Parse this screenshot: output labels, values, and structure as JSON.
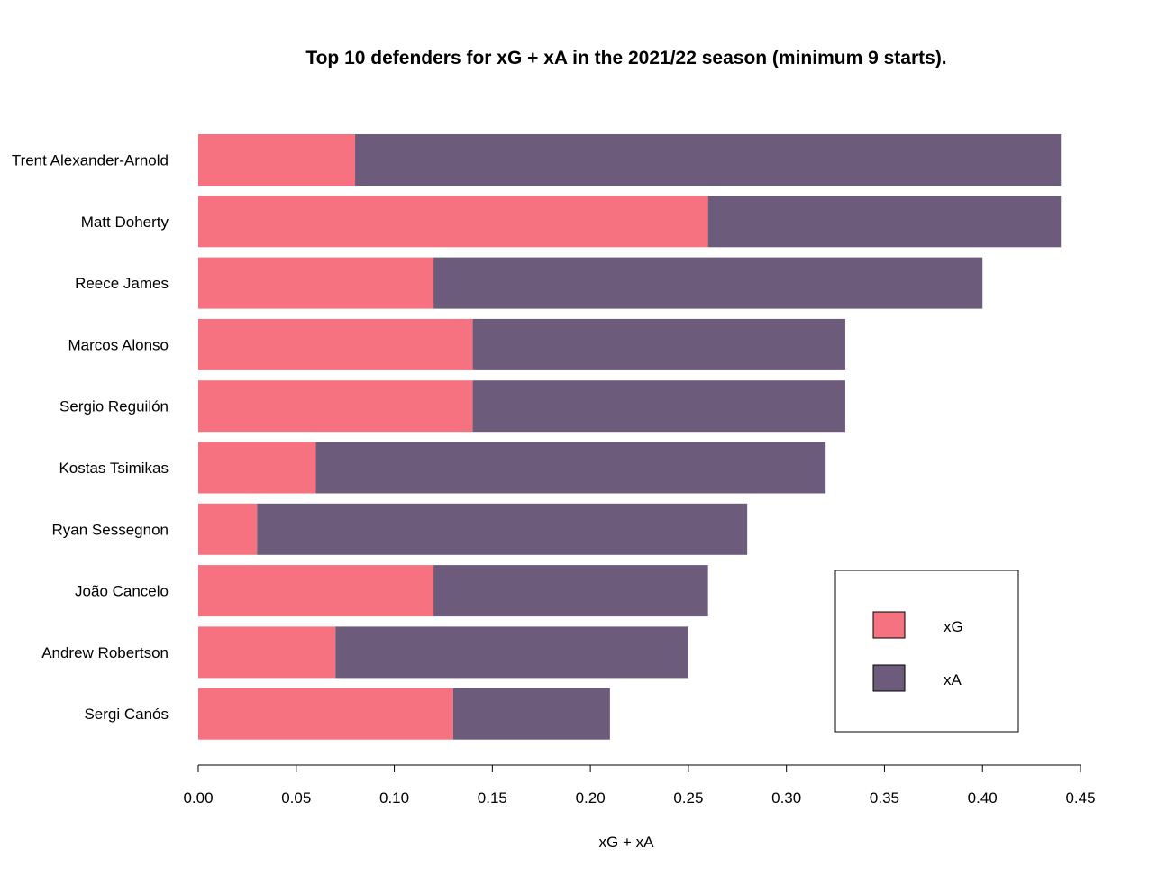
{
  "chart_data": {
    "type": "bar",
    "orientation": "horizontal",
    "stacked": true,
    "title": "Top 10 defenders for xG + xA in the 2021/22 season (minimum 9 starts).",
    "xlabel": "xG + xA",
    "ylabel": "",
    "xlim": [
      0,
      0.45
    ],
    "x_ticks": [
      "0.00",
      "0.05",
      "0.10",
      "0.15",
      "0.20",
      "0.25",
      "0.30",
      "0.35",
      "0.40",
      "0.45"
    ],
    "x_tick_values": [
      0,
      0.05,
      0.1,
      0.15,
      0.2,
      0.25,
      0.3,
      0.35,
      0.4,
      0.45
    ],
    "grid": false,
    "legend_position": "bottom-right",
    "categories": [
      "Trent Alexander-Arnold",
      "Matt Doherty",
      "Reece James",
      "Marcos Alonso",
      "Sergio Reguilón",
      "Kostas Tsimikas",
      "Ryan Sessegnon",
      "João Cancelo",
      "Andrew Robertson",
      "Sergi Canós"
    ],
    "series": [
      {
        "name": "xG",
        "color": "#F67280",
        "values": [
          0.08,
          0.26,
          0.12,
          0.14,
          0.14,
          0.06,
          0.03,
          0.12,
          0.07,
          0.13
        ]
      },
      {
        "name": "xA",
        "color": "#6C5B7B",
        "values": [
          0.36,
          0.18,
          0.28,
          0.19,
          0.19,
          0.26,
          0.25,
          0.14,
          0.18,
          0.08
        ]
      }
    ]
  }
}
